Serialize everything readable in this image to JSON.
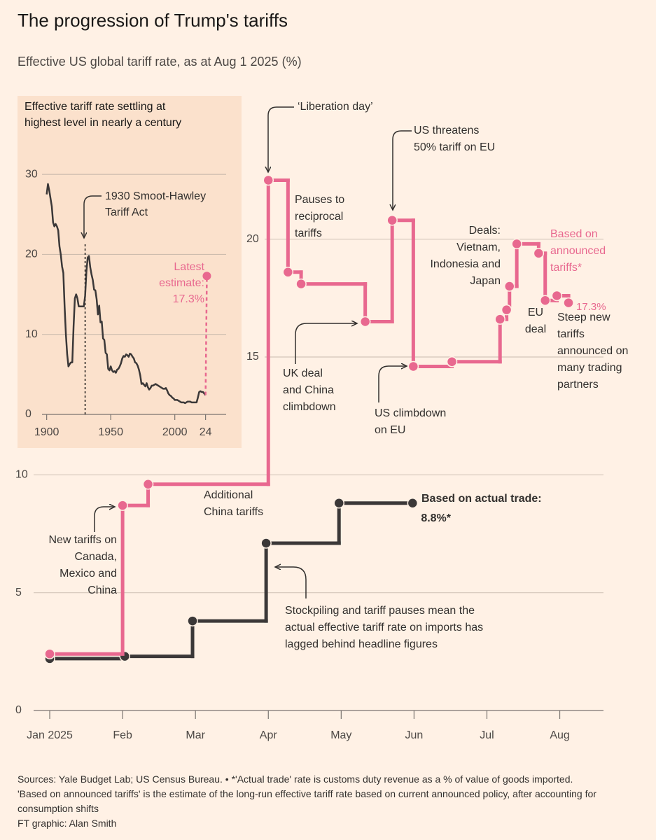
{
  "chart_data": [
    {
      "type": "line",
      "step": "post",
      "title": "The progression of Trump's tariffs",
      "subtitle": "Effective US global tariff rate, as at Aug 1 2025 (%)",
      "xlim": [
        -0.4,
        7.6
      ],
      "xticks": [
        {
          "value": 0,
          "label": "Jan 2025"
        },
        {
          "value": 1,
          "label": "Feb"
        },
        {
          "value": 2,
          "label": "Mar"
        },
        {
          "value": 3,
          "label": "Apr"
        },
        {
          "value": 4,
          "label": "May"
        },
        {
          "value": 5,
          "label": "Jun"
        },
        {
          "value": 6,
          "label": "Jul"
        },
        {
          "value": 7,
          "label": "Aug"
        }
      ],
      "ylim": [
        0,
        24
      ],
      "yticks": [
        0,
        5,
        10,
        15,
        20
      ],
      "grid": true,
      "series": [
        {
          "name": "Based on announced tariffs*",
          "color": "#e8688f",
          "x": [
            0,
            1,
            1.35,
            3,
            3.27,
            3.45,
            4.33,
            4.7,
            4.99,
            5.52,
            6.18,
            6.27,
            6.31,
            6.41,
            6.71,
            6.8,
            6.96,
            7.12
          ],
          "values": [
            2.4,
            8.7,
            9.6,
            22.5,
            18.6,
            18.1,
            16.5,
            20.8,
            14.6,
            14.8,
            16.6,
            17.0,
            18.0,
            19.8,
            19.4,
            17.4,
            17.6,
            17.3
          ],
          "value_labels": [
            null,
            null,
            null,
            null,
            null,
            null,
            null,
            null,
            null,
            null,
            null,
            null,
            null,
            null,
            null,
            null,
            null,
            "17.3%"
          ]
        },
        {
          "name": "Based on actual trade:",
          "color": "#3b3838",
          "x": [
            0,
            1.03,
            1.96,
            2.97,
            3.97,
            4.98
          ],
          "values": [
            2.2,
            2.3,
            3.8,
            7.1,
            8.8,
            8.8
          ],
          "value_labels": [
            null,
            null,
            null,
            null,
            null,
            "8.8%*"
          ]
        }
      ],
      "annotations": [
        "‘Liberation day’",
        "Pauses to\nreciprocal\ntariffs",
        "US threatens\n50% tariff on EU",
        "Deals:\nVietnam,\nIndonesia and\nJapan",
        "UK deal\nand China\nclimbdown",
        "US climbdown\non EU",
        "EU\ndeal",
        "Steep new\ntariffs\nannounced on\nmany trading\npartners",
        "Additional\nChina tariffs",
        "New tariffs on\nCanada,\nMexico and\nChina",
        "Stockpiling and tariff pauses mean the\nactual effective tariff rate on imports has\nlagged behind headline figures"
      ],
      "source": "Sources: Yale Budget Lab; US Census Bureau. • *'Actual trade' rate is customs duty revenue as a % of value of goods imported.\n'Based on announced tariffs' is the estimate of the long-run effective tariff rate based on current announced policy, after accounting for consumption shifts",
      "credit": "FT graphic: Alan Smith"
    },
    {
      "type": "line",
      "title": "Effective tariff rate settling at\nhighest level in nearly a century",
      "xlim": [
        1898,
        2030
      ],
      "xticks": [
        1900,
        1950,
        2000,
        {
          "value": 2024,
          "label": "24"
        }
      ],
      "ylim": [
        0,
        31
      ],
      "yticks": [
        0,
        10,
        20,
        30
      ],
      "grid": true,
      "reference_line_x": 1930,
      "series": [
        {
          "color": "#3b3838",
          "x": [
            1900,
            1901,
            1902,
            1903,
            1904,
            1905,
            1906,
            1907,
            1908,
            1909,
            1910,
            1911,
            1912,
            1913,
            1914,
            1915,
            1916,
            1917,
            1918,
            1919,
            1920,
            1921,
            1922,
            1923,
            1924,
            1925,
            1926,
            1927,
            1928,
            1929,
            1930,
            1931,
            1932,
            1933,
            1934,
            1935,
            1936,
            1937,
            1938,
            1939,
            1940,
            1941,
            1942,
            1943,
            1944,
            1945,
            1946,
            1947,
            1948,
            1949,
            1950,
            1951,
            1952,
            1953,
            1954,
            1955,
            1956,
            1957,
            1958,
            1959,
            1960,
            1961,
            1962,
            1963,
            1964,
            1965,
            1966,
            1967,
            1968,
            1969,
            1970,
            1971,
            1972,
            1973,
            1974,
            1975,
            1976,
            1977,
            1978,
            1979,
            1980,
            1981,
            1982,
            1983,
            1984,
            1985,
            1986,
            1987,
            1988,
            1989,
            1990,
            1991,
            1992,
            1993,
            1994,
            1995,
            1996,
            1997,
            1998,
            1999,
            2000,
            2001,
            2002,
            2003,
            2004,
            2005,
            2006,
            2007,
            2008,
            2009,
            2010,
            2011,
            2012,
            2013,
            2014,
            2015,
            2016,
            2017,
            2018,
            2019,
            2020,
            2021,
            2022,
            2023,
            2024
          ],
          "values": [
            27.5,
            28.8,
            28,
            27,
            26,
            24,
            23.5,
            23.8,
            23.5,
            23,
            21,
            20,
            18.5,
            17.7,
            13.5,
            10,
            7.5,
            6,
            6.3,
            6.5,
            6.5,
            11,
            14.5,
            15,
            14.5,
            13.5,
            13.5,
            13.5,
            13.5,
            13.5,
            14.8,
            17.8,
            19.6,
            19.8,
            18.4,
            17.5,
            16.8,
            15.6,
            15.5,
            14.4,
            12.5,
            13.6,
            11.5,
            11.6,
            9.5,
            9.3,
            7.7,
            7.5,
            5.7,
            5.5,
            6,
            5.5,
            5.3,
            5.4,
            5.2,
            5.6,
            5.7,
            6,
            6.4,
            7,
            7.3,
            7.2,
            7.5,
            7.4,
            7.2,
            7.6,
            7.5,
            7.2,
            7,
            6.5,
            6.4,
            6.1,
            5.6,
            4.9,
            3.8,
            3.9,
            3.7,
            3.5,
            3.9,
            3.4,
            3.1,
            3.3,
            3.6,
            3.6,
            3.7,
            3.8,
            3.7,
            3.6,
            3.5,
            3.4,
            3.3,
            3.2,
            3.2,
            3.3,
            3,
            2.6,
            2.4,
            2.3,
            2.1,
            2,
            1.8,
            1.8,
            1.8,
            1.7,
            1.6,
            1.5,
            1.5,
            1.5,
            1.4,
            1.5,
            1.6,
            1.6,
            1.6,
            1.5,
            1.5,
            1.5,
            1.5,
            1.5,
            2.1,
            2.8,
            2.9,
            2.8,
            2.8,
            2.6,
            2.4
          ]
        },
        {
          "color": "#e8688f",
          "dashed": true,
          "x": [
            2024,
            2025
          ],
          "values": [
            2.4,
            17.3
          ]
        }
      ],
      "annotations": [
        "1930 Smoot-Hawley\nTariff Act",
        "Latest\nestimate:\n17.3%"
      ]
    }
  ]
}
